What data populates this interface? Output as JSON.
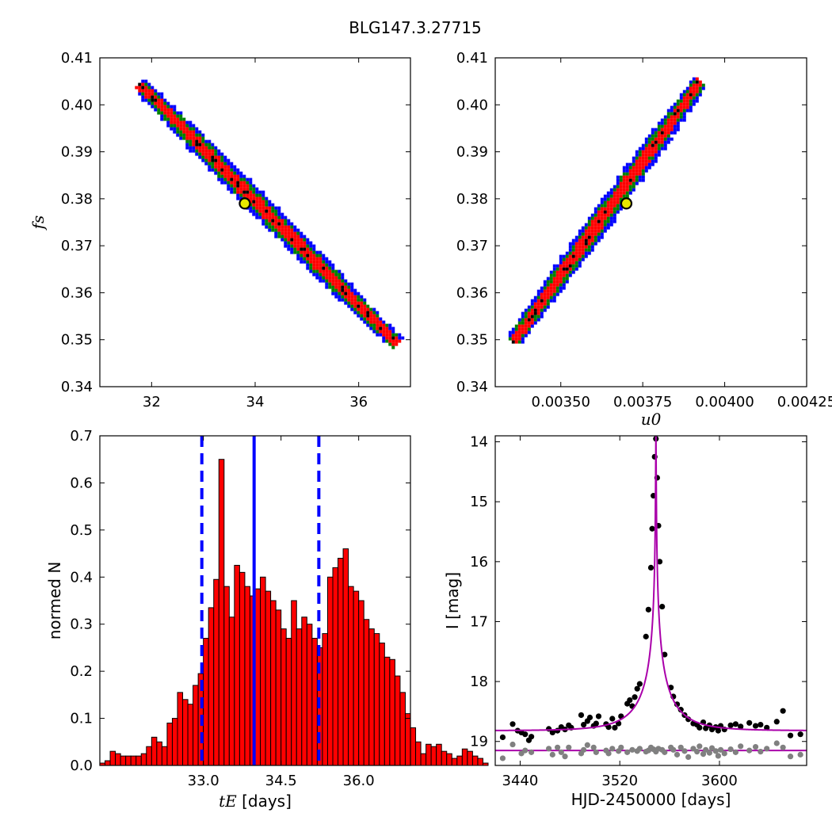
{
  "figure_title": "BLG147.3.27715",
  "chart_data": [
    {
      "id": "tE-vs-fs",
      "type": "heatmap",
      "xlabel": "",
      "ylabel": "f_s",
      "xlim": [
        31.0,
        37.0
      ],
      "ylim": [
        0.34,
        0.41
      ],
      "x_ticks": [
        32,
        34,
        36
      ],
      "x_tick_labels": [
        "32",
        "34",
        "36"
      ],
      "y_ticks": [
        0.34,
        0.35,
        0.36,
        0.37,
        0.38,
        0.39,
        0.4,
        0.41
      ],
      "y_tick_labels": [
        "0.34",
        "0.35",
        "0.36",
        "0.37",
        "0.38",
        "0.39",
        "0.40",
        "0.41"
      ],
      "band": {
        "x_start": 31.8,
        "y_start": 0.404,
        "x_end": 36.7,
        "y_end": 0.3495
      },
      "colors": {
        "outer": "#0000ff",
        "middle": "#008000",
        "inner": "#ff0000",
        "core": "#000000"
      },
      "best_fit": {
        "x": 33.8,
        "y": 0.379
      }
    },
    {
      "id": "u0-vs-fs",
      "type": "heatmap",
      "xlabel": "u_0",
      "ylabel": "",
      "xlim": [
        0.0033,
        0.00425
      ],
      "ylim": [
        0.34,
        0.41
      ],
      "x_ticks": [
        0.0035,
        0.00375,
        0.004,
        0.00425
      ],
      "x_tick_labels": [
        "0.00350",
        "0.00375",
        "0.00400",
        "0.00425"
      ],
      "y_ticks": [
        0.34,
        0.35,
        0.36,
        0.37,
        0.38,
        0.39,
        0.4,
        0.41
      ],
      "y_tick_labels": [
        "0.34",
        "0.35",
        "0.36",
        "0.37",
        "0.38",
        "0.39",
        "0.40",
        "0.41"
      ],
      "band": {
        "x_start": 0.00336,
        "y_start": 0.35,
        "x_end": 0.00392,
        "y_end": 0.4045
      },
      "colors": {
        "outer": "#0000ff",
        "middle": "#008000",
        "inner": "#ff0000",
        "core": "#000000"
      },
      "best_fit": {
        "x": 0.0037,
        "y": 0.379
      }
    },
    {
      "id": "tE-histogram",
      "type": "bar",
      "xlabel": "t_E",
      "xlabel_unit": "[days]",
      "ylabel": "normed N",
      "xlim": [
        31.0,
        37.0
      ],
      "ylim": [
        0.0,
        0.7
      ],
      "bin_start": 31.0,
      "bin_width": 0.1,
      "values": [
        0.005,
        0.01,
        0.03,
        0.025,
        0.02,
        0.02,
        0.02,
        0.02,
        0.025,
        0.04,
        0.06,
        0.05,
        0.04,
        0.09,
        0.1,
        0.155,
        0.14,
        0.13,
        0.17,
        0.195,
        0.27,
        0.335,
        0.395,
        0.65,
        0.38,
        0.315,
        0.425,
        0.41,
        0.38,
        0.36,
        0.375,
        0.4,
        0.37,
        0.35,
        0.33,
        0.29,
        0.27,
        0.35,
        0.29,
        0.315,
        0.3,
        0.27,
        0.25,
        0.28,
        0.4,
        0.42,
        0.44,
        0.46,
        0.38,
        0.37,
        0.35,
        0.31,
        0.29,
        0.28,
        0.26,
        0.23,
        0.225,
        0.19,
        0.155,
        0.11,
        0.08,
        0.05,
        0.025,
        0.045,
        0.04,
        0.045,
        0.03,
        0.025,
        0.015,
        0.02,
        0.035,
        0.03,
        0.02,
        0.015,
        0.005
      ],
      "bar_color": "#ff0000",
      "x_ticks": [
        33.0,
        34.5,
        36.0
      ],
      "x_tick_labels": [
        "33.0",
        "34.5",
        "36.0"
      ],
      "y_ticks": [
        0.0,
        0.1,
        0.2,
        0.3,
        0.4,
        0.5,
        0.6,
        0.7
      ],
      "y_tick_labels": [
        "0.0",
        "0.1",
        "0.2",
        "0.3",
        "0.4",
        "0.5",
        "0.6",
        "0.7"
      ],
      "median_line": 33.98,
      "bound_lines": [
        32.97,
        35.23
      ],
      "line_color": "#0000ff"
    },
    {
      "id": "light-curve",
      "type": "scatter",
      "xlabel": "HJD-2450000 [days]",
      "ylabel": "I [mag]",
      "xlim": [
        3420,
        3670
      ],
      "ylim": [
        19.4,
        13.9
      ],
      "x_ticks": [
        3440,
        3520,
        3600
      ],
      "x_tick_labels": [
        "3440",
        "3520",
        "3600"
      ],
      "y_ticks": [
        14,
        15,
        16,
        17,
        18,
        19
      ],
      "y_tick_labels": [
        "14",
        "15",
        "16",
        "17",
        "18",
        "19"
      ],
      "model": {
        "t0": 3549,
        "tE": 34.0,
        "u0": 0.0037,
        "fs": 0.379,
        "baseline": 18.82,
        "color": "#aa00aa"
      },
      "residual_baseline": 19.15,
      "data_color": "#000000",
      "residual_color": "#808080",
      "data_points": [
        [
          3426,
          18.93
        ],
        [
          3434,
          18.71
        ],
        [
          3438,
          18.82
        ],
        [
          3441,
          18.85
        ],
        [
          3444,
          18.88
        ],
        [
          3447,
          18.98
        ],
        [
          3449,
          18.92
        ],
        [
          3463,
          18.79
        ],
        [
          3466,
          18.85
        ],
        [
          3470,
          18.82
        ],
        [
          3473,
          18.76
        ],
        [
          3476,
          18.8
        ],
        [
          3479,
          18.73
        ],
        [
          3481,
          18.77
        ],
        [
          3489,
          18.56
        ],
        [
          3491,
          18.72
        ],
        [
          3494,
          18.66
        ],
        [
          3496,
          18.6
        ],
        [
          3499,
          18.74
        ],
        [
          3501,
          18.7
        ],
        [
          3503,
          18.58
        ],
        [
          3509,
          18.71
        ],
        [
          3511,
          18.76
        ],
        [
          3514,
          18.62
        ],
        [
          3516,
          18.77
        ],
        [
          3519,
          18.7
        ],
        [
          3521,
          18.58
        ],
        [
          3526,
          18.37
        ],
        [
          3528,
          18.31
        ],
        [
          3530,
          18.41
        ],
        [
          3532,
          18.26
        ],
        [
          3534,
          18.12
        ],
        [
          3536,
          18.04
        ],
        [
          3541,
          17.25
        ],
        [
          3543,
          16.8
        ],
        [
          3545,
          16.1
        ],
        [
          3546,
          15.45
        ],
        [
          3547,
          14.9
        ],
        [
          3548,
          14.25
        ],
        [
          3549,
          13.95
        ],
        [
          3550,
          14.6
        ],
        [
          3551,
          15.4
        ],
        [
          3552,
          16.0
        ],
        [
          3554,
          16.75
        ],
        [
          3556,
          17.55
        ],
        [
          3561,
          18.1
        ],
        [
          3563,
          18.25
        ],
        [
          3566,
          18.38
        ],
        [
          3569,
          18.47
        ],
        [
          3572,
          18.56
        ],
        [
          3575,
          18.63
        ],
        [
          3579,
          18.7
        ],
        [
          3582,
          18.72
        ],
        [
          3584,
          18.77
        ],
        [
          3587,
          18.68
        ],
        [
          3589,
          18.78
        ],
        [
          3592,
          18.73
        ],
        [
          3594,
          18.8
        ],
        [
          3597,
          18.76
        ],
        [
          3599,
          18.82
        ],
        [
          3601,
          18.74
        ],
        [
          3604,
          18.8
        ],
        [
          3609,
          18.73
        ],
        [
          3613,
          18.71
        ],
        [
          3617,
          18.75
        ],
        [
          3624,
          18.69
        ],
        [
          3629,
          18.74
        ],
        [
          3633,
          18.72
        ],
        [
          3638,
          18.77
        ],
        [
          3646,
          18.67
        ],
        [
          3651,
          18.49
        ],
        [
          3657,
          18.9
        ],
        [
          3665,
          18.88
        ]
      ],
      "residual_points": [
        [
          3426,
          19.28
        ],
        [
          3434,
          19.05
        ],
        [
          3441,
          19.2
        ],
        [
          3444,
          19.15
        ],
        [
          3449,
          19.18
        ],
        [
          3463,
          19.12
        ],
        [
          3466,
          19.22
        ],
        [
          3470,
          19.1
        ],
        [
          3473,
          19.18
        ],
        [
          3476,
          19.25
        ],
        [
          3479,
          19.1
        ],
        [
          3489,
          19.2
        ],
        [
          3491,
          19.14
        ],
        [
          3494,
          19.06
        ],
        [
          3499,
          19.1
        ],
        [
          3501,
          19.18
        ],
        [
          3509,
          19.15
        ],
        [
          3511,
          19.2
        ],
        [
          3514,
          19.12
        ],
        [
          3519,
          19.16
        ],
        [
          3521,
          19.1
        ],
        [
          3526,
          19.18
        ],
        [
          3530,
          19.14
        ],
        [
          3534,
          19.16
        ],
        [
          3536,
          19.12
        ],
        [
          3541,
          19.17
        ],
        [
          3543,
          19.15
        ],
        [
          3545,
          19.1
        ],
        [
          3547,
          19.13
        ],
        [
          3549,
          19.17
        ],
        [
          3551,
          19.12
        ],
        [
          3554,
          19.14
        ],
        [
          3556,
          19.18
        ],
        [
          3561,
          19.1
        ],
        [
          3563,
          19.14
        ],
        [
          3566,
          19.22
        ],
        [
          3569,
          19.1
        ],
        [
          3572,
          19.16
        ],
        [
          3575,
          19.26
        ],
        [
          3579,
          19.12
        ],
        [
          3582,
          19.17
        ],
        [
          3584,
          19.08
        ],
        [
          3587,
          19.21
        ],
        [
          3589,
          19.14
        ],
        [
          3592,
          19.19
        ],
        [
          3594,
          19.11
        ],
        [
          3597,
          19.16
        ],
        [
          3599,
          19.24
        ],
        [
          3601,
          19.14
        ],
        [
          3604,
          19.2
        ],
        [
          3609,
          19.13
        ],
        [
          3613,
          19.18
        ],
        [
          3617,
          19.08
        ],
        [
          3624,
          19.15
        ],
        [
          3629,
          19.09
        ],
        [
          3633,
          19.17
        ],
        [
          3638,
          19.12
        ],
        [
          3646,
          19.03
        ],
        [
          3651,
          19.1
        ],
        [
          3657,
          19.25
        ],
        [
          3665,
          19.22
        ]
      ]
    }
  ]
}
